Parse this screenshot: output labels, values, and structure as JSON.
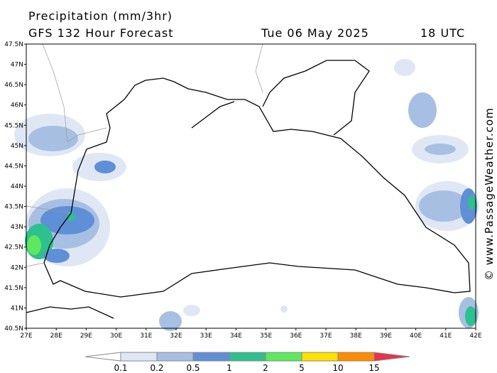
{
  "header": {
    "title": "Precipitation (mm/3hr)",
    "subtitle": "GFS 132 Hour Forecast",
    "date": "Tue 06 May 2025",
    "time": "18 UTC"
  },
  "watermark": "© www.PassageWeather.com",
  "lat_labels": [
    "47.5N",
    "47N",
    "46.5N",
    "46N",
    "45.5N",
    "45N",
    "44.5N",
    "44N",
    "43.5N",
    "43N",
    "42.5N",
    "42N",
    "41.5N",
    "41N",
    "40.5N"
  ],
  "lon_labels": [
    "27E",
    "28E",
    "29E",
    "30E",
    "31E",
    "32E",
    "33E",
    "34E",
    "35E",
    "36E",
    "37E",
    "38E",
    "39E",
    "40E",
    "41E",
    "42E"
  ],
  "legend": {
    "under_color": "#ffffff",
    "over_color": "#e8334a",
    "colors": [
      "#dfe7f5",
      "#a7bfe2",
      "#5f8fd6",
      "#2ec08e",
      "#5de85d",
      "#ffe000",
      "#ff8c00"
    ],
    "labels": [
      "0.1",
      "0.2",
      "0.5",
      "1",
      "2",
      "5",
      "10",
      "15"
    ]
  }
}
